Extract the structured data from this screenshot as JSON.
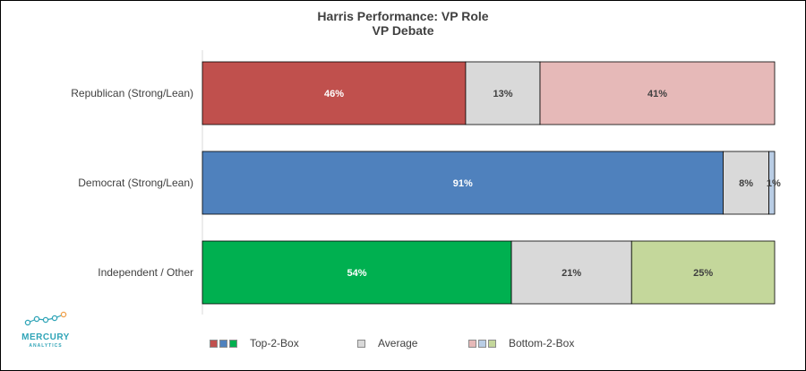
{
  "chart_data": {
    "type": "bar",
    "orientation": "horizontal",
    "stacked": true,
    "title": "Harris Performance: VP Role",
    "subtitle": "VP Debate",
    "xlabel": "",
    "ylabel": "",
    "xlim": [
      0,
      100
    ],
    "grid": false,
    "legend_position": "bottom",
    "categories": [
      "Republican (Strong/Lean)",
      "Democrat (Strong/Lean)",
      "Independent / Other"
    ],
    "series": [
      {
        "name": "Top-2-Box",
        "values": [
          46,
          91,
          54
        ],
        "labels": [
          "46%",
          "91%",
          "54%"
        ],
        "colors": [
          "#c0504d",
          "#4f81bd",
          "#00b050"
        ],
        "label_color": "#ffffff"
      },
      {
        "name": "Average",
        "values": [
          13,
          8,
          21
        ],
        "labels": [
          "13%",
          "8%",
          "21%"
        ],
        "colors": [
          "#d9d9d9",
          "#d9d9d9",
          "#d9d9d9"
        ],
        "label_color": "#404040"
      },
      {
        "name": "Bottom-2-Box",
        "values": [
          41,
          1,
          25
        ],
        "labels": [
          "41%",
          "1%",
          "25%"
        ],
        "colors": [
          "#e6b9b8",
          "#b9cde5",
          "#c4d79b"
        ],
        "label_color": "#404040"
      }
    ]
  },
  "legend": [
    {
      "label": "Top-2-Box",
      "colors": [
        "#c0504d",
        "#4f81bd",
        "#00b050"
      ]
    },
    {
      "label": "Average",
      "colors": [
        "#d9d9d9"
      ]
    },
    {
      "label": "Bottom-2-Box",
      "colors": [
        "#e6b9b8",
        "#b9cde5",
        "#c4d79b"
      ]
    }
  ],
  "logo": {
    "name": "MERCURY",
    "tagline": "ANALYTICS",
    "color": "#2fa4b7",
    "accent": "#f0a04b"
  }
}
